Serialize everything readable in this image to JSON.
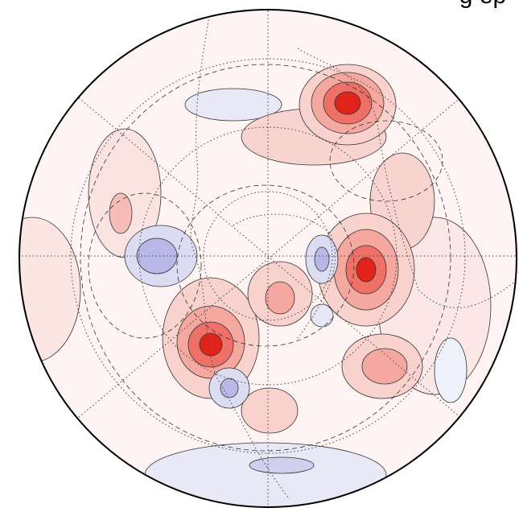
{
  "header": {
    "title": "g ep"
  }
}
